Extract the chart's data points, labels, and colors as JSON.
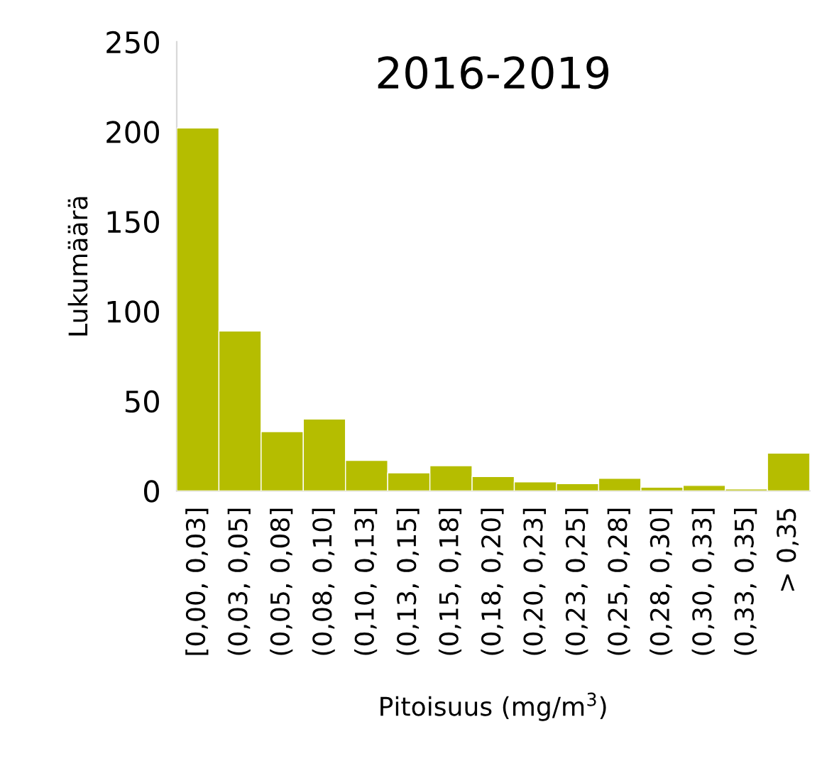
{
  "chart_data": {
    "type": "bar",
    "title": "2016-2019",
    "xlabel": "Pitoisuus (mg/m$^{3}$)",
    "ylabel": "Lukumäärä",
    "categories": [
      "[0,00, 0,03]",
      "(0,03, 0,05]",
      "(0,05, 0,08]",
      "(0,08, 0,10]",
      "(0,10, 0,13]",
      "(0,13, 0,15]",
      "(0,15, 0,18]",
      "(0,18, 0,20]",
      "(0,20, 0,23]",
      "(0,23, 0,25]",
      "(0,25, 0,28]",
      "(0,28, 0,30]",
      "(0,30, 0,33]",
      "(0,33, 0,35]",
      "> 0,35"
    ],
    "values": [
      202,
      89,
      33,
      40,
      17,
      10,
      14,
      8,
      5,
      4,
      7,
      2,
      3,
      1,
      21
    ],
    "color": "#b5bd00",
    "ylim": [
      0,
      250
    ],
    "yticks": [
      0,
      50,
      100,
      150,
      200,
      250
    ],
    "grid": false,
    "legend": false
  }
}
